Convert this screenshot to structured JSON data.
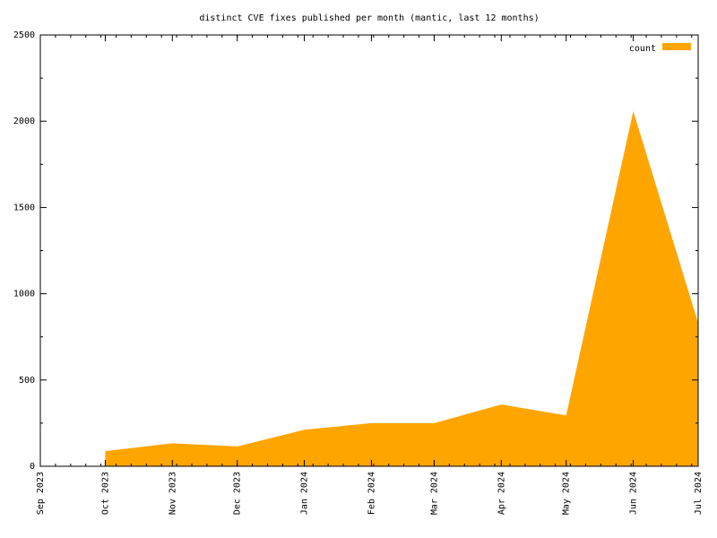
{
  "chart_data": {
    "type": "area",
    "title": "distinct CVE fixes published per month (mantic, last 12 months)",
    "xlabel": "",
    "ylabel": "",
    "x_ticks": [
      "Sep 2023",
      "Oct 2023",
      "Nov 2023",
      "Dec 2023",
      "Jan 2024",
      "Feb 2024",
      "Mar 2024",
      "Apr 2024",
      "May 2024",
      "Jun 2024",
      "Jul 2024"
    ],
    "x_range": [
      "2023-09-01",
      "2024-07-01"
    ],
    "ylim": [
      0,
      2500
    ],
    "y_ticks": [
      0,
      500,
      1000,
      1500,
      2000,
      2500
    ],
    "grid": false,
    "legend_position": "top-right",
    "series": [
      {
        "name": "count",
        "color": "#ffa500",
        "points": [
          {
            "x": "2023-10-01",
            "y": 88
          },
          {
            "x": "2023-11-01",
            "y": 133
          },
          {
            "x": "2023-12-01",
            "y": 115
          },
          {
            "x": "2024-01-01",
            "y": 212
          },
          {
            "x": "2024-02-01",
            "y": 250
          },
          {
            "x": "2024-03-01",
            "y": 250
          },
          {
            "x": "2024-04-01",
            "y": 358
          },
          {
            "x": "2024-05-01",
            "y": 295
          },
          {
            "x": "2024-06-01",
            "y": 2058
          },
          {
            "x": "2024-07-01",
            "y": 830
          }
        ]
      }
    ]
  }
}
